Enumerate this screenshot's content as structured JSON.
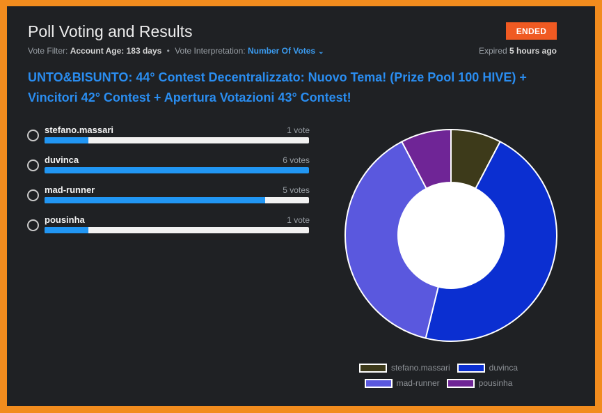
{
  "poll": {
    "title": "Poll Voting and Results",
    "status": "ENDED",
    "filter_label": "Vote Filter:",
    "filter_value": "Account Age: 183 days",
    "separator": "•",
    "interp_label": "Vote Interpretation:",
    "interp_value": "Number Of Votes",
    "chevron_glyph": "⌄",
    "expired_label": "Expired",
    "expired_value": "5 hours ago",
    "question": "UNTO&BISUNTO: 44° Contest Decentralizzato: Nuovo Tema! (Prize Pool 100 HIVE) + Vincitori 42° Contest + Apertura Votazioni 43° Contest!"
  },
  "options": [
    {
      "name": "stefano.massari",
      "votes_label": "1 vote",
      "fill": 0.167
    },
    {
      "name": "duvinca",
      "votes_label": "6 votes",
      "fill": 1.0
    },
    {
      "name": "mad-runner",
      "votes_label": "5 votes",
      "fill": 0.833
    },
    {
      "name": "pousinha",
      "votes_label": "1 vote",
      "fill": 0.167
    }
  ],
  "chart_data": {
    "type": "pie",
    "categories": [
      "stefano.massari",
      "duvinca",
      "mad-runner",
      "pousinha"
    ],
    "values": [
      1,
      6,
      5,
      1
    ],
    "colors": [
      "#3d3a1a",
      "#0b2fd1",
      "#5a58de",
      "#6f2596"
    ],
    "legend_position": "bottom",
    "title": ""
  }
}
